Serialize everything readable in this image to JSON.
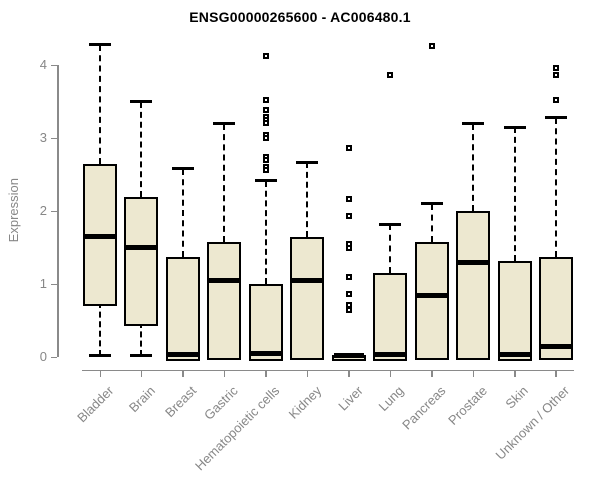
{
  "chart_data": {
    "type": "boxplot",
    "title": "ENSG00000265600 - AC006480.1",
    "xlabel": "",
    "ylabel": "Expression",
    "ylim": [
      0,
      4.3
    ],
    "yticks": [
      0,
      1,
      2,
      3,
      4
    ],
    "grid": false,
    "legend": "none",
    "box_fill_color": "#EDE8D0",
    "box_border_color": "#000000",
    "whisker_style": "dashed",
    "axis_color": "#8a8a8a",
    "label_color": "#878787",
    "categories": [
      "Bladder",
      "Brain",
      "Breast",
      "Gastric",
      "Hematopoietic cells",
      "Kidney",
      "Liver",
      "Lung",
      "Pancreas",
      "Prostate",
      "Skin",
      "Unknown / Other"
    ],
    "series": [
      {
        "name": "Bladder",
        "whisker_low": 0.02,
        "q1": 0.75,
        "median": 1.65,
        "q3": 2.65,
        "whisker_high": 4.28,
        "outliers": []
      },
      {
        "name": "Brain",
        "whisker_low": 0.02,
        "q1": 0.48,
        "median": 1.5,
        "q3": 2.2,
        "whisker_high": 3.5,
        "outliers": []
      },
      {
        "name": "Breast",
        "whisker_low": 0.0,
        "q1": 0.0,
        "median": 0.04,
        "q3": 1.37,
        "whisker_high": 2.58,
        "outliers": []
      },
      {
        "name": "Gastric",
        "whisker_low": 0.02,
        "q1": 0.02,
        "median": 1.05,
        "q3": 1.58,
        "whisker_high": 3.2,
        "outliers": []
      },
      {
        "name": "Hematopoietic cells",
        "whisker_low": 0.0,
        "q1": 0.0,
        "median": 0.05,
        "q3": 1.0,
        "whisker_high": 2.42,
        "outliers": [
          4.13,
          3.53,
          3.38,
          3.29,
          3.25,
          3.21,
          3.04,
          3.0,
          2.74,
          2.7,
          2.6,
          2.56
        ]
      },
      {
        "name": "Kidney",
        "whisker_low": 0.02,
        "q1": 0.02,
        "median": 1.05,
        "q3": 1.65,
        "whisker_high": 2.67,
        "outliers": []
      },
      {
        "name": "Liver",
        "whisker_low": 0.0,
        "q1": 0.0,
        "median": 0.02,
        "q3": 0.03,
        "whisker_high": 0.03,
        "outliers": [
          2.86,
          2.17,
          1.93,
          1.55,
          1.5,
          1.1,
          0.87,
          0.71,
          0.65
        ]
      },
      {
        "name": "Lung",
        "whisker_low": 0.0,
        "q1": 0.0,
        "median": 0.04,
        "q3": 1.15,
        "whisker_high": 1.82,
        "outliers": [
          3.86
        ]
      },
      {
        "name": "Pancreas",
        "whisker_low": 0.02,
        "q1": 0.02,
        "median": 0.85,
        "q3": 1.58,
        "whisker_high": 2.1,
        "outliers": [
          4.27
        ]
      },
      {
        "name": "Prostate",
        "whisker_low": 0.02,
        "q1": 0.02,
        "median": 1.3,
        "q3": 2.0,
        "whisker_high": 3.2,
        "outliers": []
      },
      {
        "name": "Skin",
        "whisker_low": 0.0,
        "q1": 0.0,
        "median": 0.04,
        "q3": 1.32,
        "whisker_high": 3.15,
        "outliers": []
      },
      {
        "name": "Unknown / Other",
        "whisker_low": 0.02,
        "q1": 0.02,
        "median": 0.15,
        "q3": 1.37,
        "whisker_high": 3.28,
        "outliers": [
          3.96,
          3.86,
          3.52
        ]
      }
    ]
  }
}
